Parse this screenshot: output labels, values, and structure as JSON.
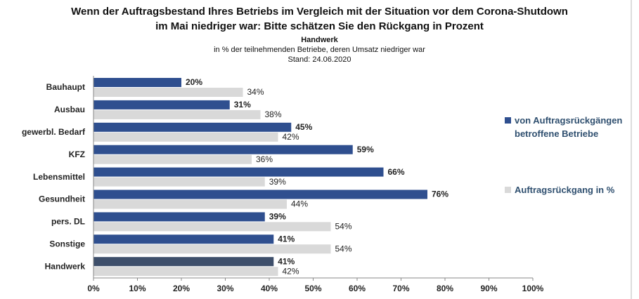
{
  "chart_data": {
    "type": "hbar",
    "title": "Wenn der Auftragsbestand Ihres Betriebs im Vergleich mit der Situation vor dem Corona-Shutdown im Mai niedriger war: Bitte schätzen Sie den Rückgang in Prozent",
    "subtitle": "Handwerk",
    "note": "in % der teilnehmenden Betriebe, deren Umsatz niedriger war",
    "date": "Stand:  24.06.2020",
    "categories": [
      "Bauhaupt",
      "Ausbau",
      "gewerbl. Bedarf",
      "KFZ",
      "Lebensmittel",
      "Gesundheit",
      "pers. DL",
      "Sonstige",
      "Handwerk"
    ],
    "series": [
      {
        "name": "von Auftragsrückgängen betroffene Betriebe",
        "color": "#2f4f8f",
        "colors": [
          "#2f4f8f",
          "#2f4f8f",
          "#2f4f8f",
          "#2f4f8f",
          "#2f4f8f",
          "#2f4f8f",
          "#2f4f8f",
          "#2f4f8f",
          "#3e4f6b"
        ],
        "values": [
          20,
          31,
          45,
          59,
          66,
          76,
          39,
          41,
          41
        ],
        "value_labels": [
          "20%",
          "31%",
          "45%",
          "59%",
          "66%",
          "76%",
          "39%",
          "41%",
          "41%"
        ]
      },
      {
        "name": "Auftragsrückgang in %",
        "color": "#d9d9d9",
        "values": [
          34,
          38,
          42,
          36,
          39,
          44,
          54,
          54,
          42
        ],
        "value_labels": [
          "34%",
          "38%",
          "42%",
          "36%",
          "39%",
          "44%",
          "54%",
          "54%",
          "42%"
        ]
      }
    ],
    "xlim": [
      0,
      100
    ],
    "xticks": [
      {
        "value": 0,
        "label": "0%"
      },
      {
        "value": 10,
        "label": "10%"
      },
      {
        "value": 20,
        "label": "20%"
      },
      {
        "value": 30,
        "label": "30%"
      },
      {
        "value": 40,
        "label": "40%"
      },
      {
        "value": 50,
        "label": "50%"
      },
      {
        "value": 60,
        "label": "60%"
      },
      {
        "value": 70,
        "label": "70%"
      },
      {
        "value": 80,
        "label": "80%"
      },
      {
        "value": 90,
        "label": "90%"
      },
      {
        "value": 100,
        "label": "100%"
      }
    ],
    "legend": "right"
  }
}
